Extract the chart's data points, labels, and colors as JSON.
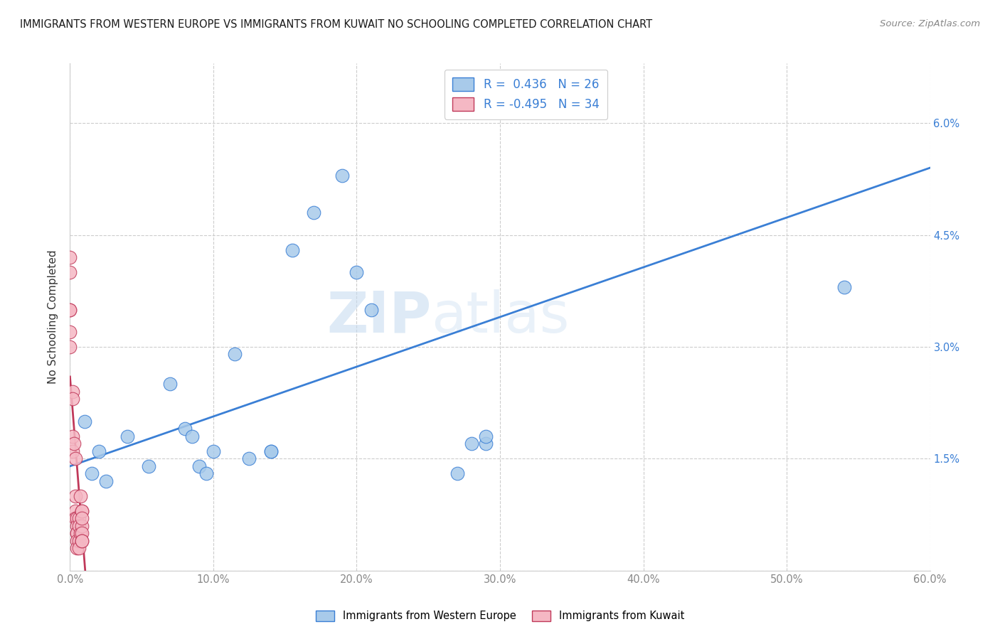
{
  "title": "IMMIGRANTS FROM WESTERN EUROPE VS IMMIGRANTS FROM KUWAIT NO SCHOOLING COMPLETED CORRELATION CHART",
  "source": "Source: ZipAtlas.com",
  "ylabel": "No Schooling Completed",
  "xlim": [
    0.0,
    0.6
  ],
  "ylim": [
    0.0,
    0.068
  ],
  "xticks": [
    0.0,
    0.1,
    0.2,
    0.3,
    0.4,
    0.5,
    0.6
  ],
  "xticklabels": [
    "0.0%",
    "10.0%",
    "20.0%",
    "30.0%",
    "40.0%",
    "50.0%",
    "60.0%"
  ],
  "yticks": [
    0.0,
    0.015,
    0.03,
    0.045,
    0.06
  ],
  "yticklabels_right": [
    "",
    "1.5%",
    "3.0%",
    "4.5%",
    "6.0%"
  ],
  "legend_r_blue": "0.436",
  "legend_n_blue": "26",
  "legend_r_pink": "-0.495",
  "legend_n_pink": "34",
  "blue_color": "#A8CAEA",
  "pink_color": "#F5B8C4",
  "line_blue": "#3A7FD5",
  "line_pink": "#C0395A",
  "watermark_zip": "ZIP",
  "watermark_atlas": "atlas",
  "blue_x": [
    0.015,
    0.025,
    0.04,
    0.055,
    0.07,
    0.08,
    0.085,
    0.09,
    0.095,
    0.1,
    0.115,
    0.125,
    0.14,
    0.14,
    0.155,
    0.17,
    0.19,
    0.2,
    0.21,
    0.27,
    0.28,
    0.29,
    0.29,
    0.54,
    0.01,
    0.02
  ],
  "blue_y": [
    0.013,
    0.012,
    0.018,
    0.014,
    0.025,
    0.019,
    0.018,
    0.014,
    0.013,
    0.016,
    0.029,
    0.015,
    0.016,
    0.016,
    0.043,
    0.048,
    0.053,
    0.04,
    0.035,
    0.013,
    0.017,
    0.017,
    0.018,
    0.038,
    0.02,
    0.016
  ],
  "pink_x": [
    0.0,
    0.0,
    0.0,
    0.0,
    0.0,
    0.0,
    0.002,
    0.002,
    0.002,
    0.002,
    0.003,
    0.004,
    0.004,
    0.004,
    0.004,
    0.005,
    0.005,
    0.005,
    0.005,
    0.005,
    0.005,
    0.006,
    0.006,
    0.006,
    0.006,
    0.007,
    0.007,
    0.008,
    0.008,
    0.008,
    0.008,
    0.008,
    0.008,
    0.008
  ],
  "pink_y": [
    0.03,
    0.032,
    0.035,
    0.04,
    0.042,
    0.035,
    0.024,
    0.023,
    0.018,
    0.016,
    0.017,
    0.015,
    0.01,
    0.008,
    0.007,
    0.007,
    0.006,
    0.005,
    0.005,
    0.004,
    0.003,
    0.004,
    0.003,
    0.007,
    0.006,
    0.01,
    0.005,
    0.008,
    0.006,
    0.005,
    0.004,
    0.008,
    0.007,
    0.004
  ],
  "blue_line_x": [
    0.0,
    0.6
  ],
  "blue_line_y": [
    0.014,
    0.054
  ],
  "pink_line_x": [
    0.0,
    0.011
  ],
  "pink_line_y": [
    0.026,
    -0.001
  ],
  "legend_label_blue": "Immigrants from Western Europe",
  "legend_label_pink": "Immigrants from Kuwait",
  "tick_color": "#888888",
  "grid_color": "#cccccc",
  "right_label_color": "#3A7FD5"
}
